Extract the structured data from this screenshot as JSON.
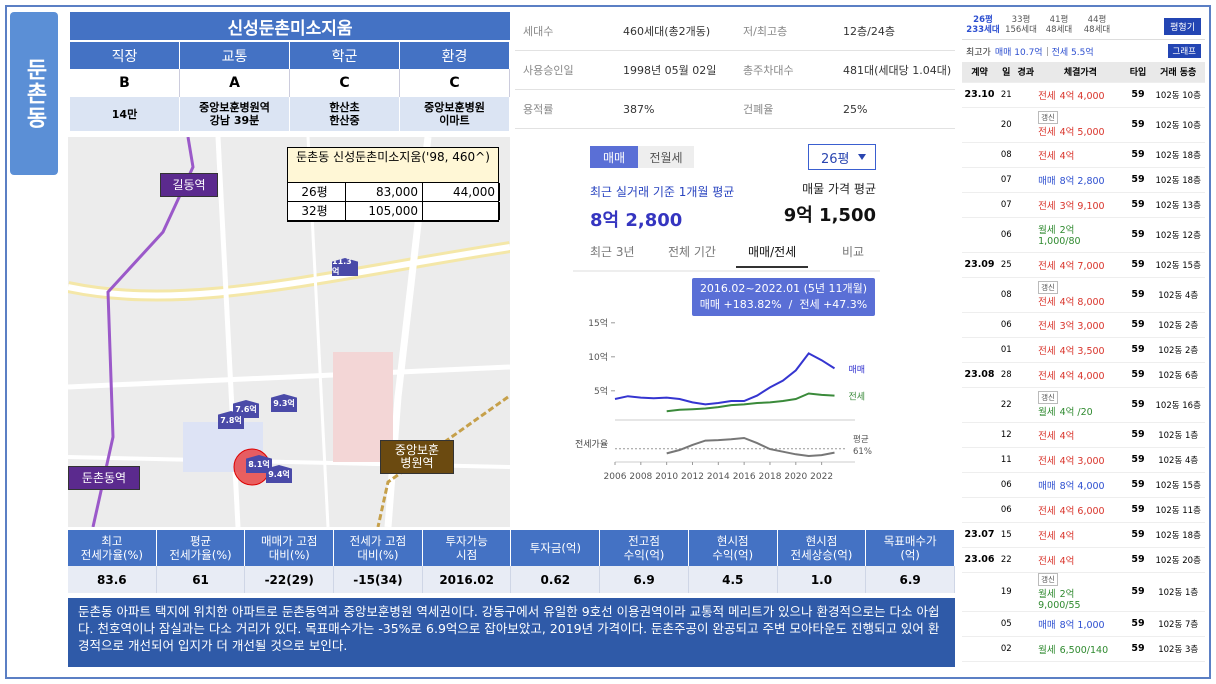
{
  "side_label": "둔촌동",
  "title": "신성둔촌미소지움",
  "scores": {
    "headers": [
      "직장",
      "교통",
      "학군",
      "환경"
    ],
    "grades": [
      "B",
      "A",
      "C",
      "C"
    ],
    "details": [
      "14만",
      "중앙보훈병원역\n강남 39분",
      "한산초\n한산중",
      "중앙보훈병원\n이마트"
    ]
  },
  "info": [
    [
      "세대수",
      "460세대(총2개동)",
      "저/최고층",
      "12층/24층"
    ],
    [
      "사용승인일",
      "1998년 05월 02일",
      "총주차대수",
      "481대(세대당 1.04대)"
    ],
    [
      "용적률",
      "387%",
      "건폐율",
      "25%"
    ]
  ],
  "map": {
    "stations": [
      "길동역",
      "둔촌동역",
      "중앙보훈\n병원역"
    ],
    "markers": [
      "11.3억",
      "7.6억",
      "9.3억",
      "7.8억",
      "8.1억",
      "9.4억"
    ],
    "overlay": {
      "title": "둔촌동 신성둔촌미소지움('98, 460^)",
      "rows": [
        [
          "26평",
          "83,000",
          "44,000"
        ],
        [
          "32평",
          "105,000"
        ]
      ]
    }
  },
  "chart_panel": {
    "tabs": [
      "매매",
      "전월세"
    ],
    "size_select": "26평",
    "recent_label": "최근 실거래 기준 1개월 평균",
    "recent_value": "8억 2,800",
    "listing_label": "매물 가격 평균",
    "listing_value": "9억 1,500",
    "period_tabs": [
      "최근 3년",
      "전체 기간",
      "매매/전세",
      "비교"
    ],
    "tooltip": [
      "2016.02~2022.01 (5년 11개월)",
      "매매 +183.82%  /  전세 +47.3%"
    ]
  },
  "chart_data": [
    {
      "type": "line",
      "x": [
        2006,
        2007,
        2008,
        2009,
        2010,
        2011,
        2012,
        2013,
        2014,
        2015,
        2016,
        2017,
        2018,
        2019,
        2020,
        2021,
        2022,
        2023
      ],
      "series": [
        {
          "name": "매매",
          "color": "#3535d0",
          "values": [
            3.8,
            4.2,
            4.0,
            3.9,
            4.0,
            3.8,
            3.3,
            3.0,
            3.2,
            3.5,
            3.5,
            4.3,
            5.5,
            6.5,
            8.0,
            10.5,
            9.5,
            8.3
          ]
        },
        {
          "name": "전세",
          "color": "#3a8a3a",
          "values": [
            null,
            null,
            null,
            null,
            2.0,
            2.2,
            2.3,
            2.4,
            2.6,
            2.9,
            3.0,
            3.2,
            3.3,
            3.5,
            3.8,
            4.6,
            4.4,
            4.3
          ]
        }
      ],
      "xlim": [
        2006,
        2023.5
      ],
      "xticks": [
        2006,
        2008,
        2010,
        2012,
        2014,
        2016,
        2018,
        2020,
        2022
      ],
      "ylim": [
        1,
        16
      ],
      "yticks": [
        {
          "value": 5,
          "label": "5억"
        },
        {
          "value": 10,
          "label": "10억"
        },
        {
          "value": 15,
          "label": "15억"
        }
      ]
    },
    {
      "type": "line",
      "ylabel": "전세가율",
      "x": [
        2010,
        2011,
        2012,
        2013,
        2014,
        2015,
        2016,
        2017,
        2018,
        2019,
        2020,
        2021,
        2022,
        2023
      ],
      "series": [
        {
          "color": "#777777",
          "values": [
            50,
            58,
            70,
            80,
            81,
            83,
            86,
            74,
            60,
            54,
            48,
            44,
            46,
            52
          ]
        }
      ],
      "xlim": [
        2006,
        2023.5
      ],
      "ylim": [
        30,
        100
      ],
      "annotation": "평균",
      "average": 61,
      "average_label": "61%"
    }
  ],
  "stats": {
    "headers": [
      "최고\n전세가율(%)",
      "평균\n전세가율(%)",
      "매매가 고점\n대비(%)",
      "전세가 고점\n대비(%)",
      "투자가능\n시점",
      "투자금(억)",
      "전고점\n수익(억)",
      "현시점\n수익(억)",
      "현시점\n전세상승(억)",
      "목표매수가\n(억)"
    ],
    "values": [
      "83.6",
      "61",
      "-22(29)",
      "-15(34)",
      "2016.02",
      "0.62",
      "6.9",
      "4.5",
      "1.0",
      "6.9"
    ]
  },
  "description": "둔촌동 아파트 택지에 위치한 아파트로 둔촌동역과 중앙보훈병원 역세권이다. 강동구에서 유일한 9호선 이용권역이라 교통적 메리트가 있으나 환경적으로는 다소 아쉽다. 천호역이나 잠실과는 다소 거리가 있다. 목표매수가는 -35%로 6.9억으로 잡아보았고, 2019년 가격이다. 둔촌주공이 완공되고 주변 모아타운도 진행되고 있어 환경적으로 개선되어 입지가 더 개선될 것으로 보인다.",
  "deals": {
    "size_tabs": [
      {
        "size": "26평",
        "units": "233세대"
      },
      {
        "size": "33평",
        "units": "156세대"
      },
      {
        "size": "41평",
        "units": "48세대"
      },
      {
        "size": "44평",
        "units": "48세대"
      }
    ],
    "plan_button": "평형기",
    "top_price": {
      "label": "최고가",
      "sale": "매매 10.7억",
      "jeonse": "전세 5.5억"
    },
    "graph_button": "그래프",
    "columns": [
      "계약",
      "일",
      "경과",
      "체결가격",
      "타입",
      "거래 동층"
    ],
    "kind_colors": {
      "전세": "#d9342b",
      "매매": "#2d4fd0",
      "월세": "#2f8a2f"
    },
    "rows": [
      {
        "month": "23.10",
        "day": "21",
        "kind": "전세",
        "price": "4억 4,000",
        "type": "59",
        "unit": "102동 10층"
      },
      {
        "day": "20",
        "tag": "갱신",
        "kind": "전세",
        "price": "4억 5,000",
        "type": "59",
        "unit": "102동 10층"
      },
      {
        "day": "08",
        "kind": "전세",
        "price": "4억",
        "type": "59",
        "unit": "102동 18층"
      },
      {
        "day": "07",
        "kind": "매매",
        "price": "8억 2,800",
        "type": "59",
        "unit": "102동 18층"
      },
      {
        "day": "07",
        "kind": "전세",
        "price": "3억 9,100",
        "type": "59",
        "unit": "102동 13층"
      },
      {
        "day": "06",
        "kind": "월세",
        "price": "2억",
        "sub": "1,000/80",
        "type": "59",
        "unit": "102동 12층"
      },
      {
        "month": "23.09",
        "day": "25",
        "kind": "전세",
        "price": "4억 7,000",
        "type": "59",
        "unit": "102동 15층"
      },
      {
        "day": "08",
        "tag": "갱신",
        "kind": "전세",
        "price": "4억 8,000",
        "type": "59",
        "unit": "102동 4층"
      },
      {
        "day": "06",
        "kind": "전세",
        "price": "3억 3,000",
        "type": "59",
        "unit": "102동 2층"
      },
      {
        "day": "01",
        "kind": "전세",
        "price": "4억 3,500",
        "type": "59",
        "unit": "102동 2층"
      },
      {
        "month": "23.08",
        "day": "28",
        "kind": "전세",
        "price": "4억 4,000",
        "type": "59",
        "unit": "102동 6층"
      },
      {
        "day": "22",
        "tag": "갱신",
        "kind": "월세",
        "price": "4억 /20",
        "type": "59",
        "unit": "102동 16층"
      },
      {
        "day": "12",
        "kind": "전세",
        "price": "4억",
        "type": "59",
        "unit": "102동 1층"
      },
      {
        "day": "11",
        "kind": "전세",
        "price": "4억 3,000",
        "type": "59",
        "unit": "102동 4층"
      },
      {
        "day": "06",
        "kind": "매매",
        "price": "8억 4,000",
        "type": "59",
        "unit": "102동 15층"
      },
      {
        "day": "06",
        "kind": "전세",
        "price": "4억 6,000",
        "type": "59",
        "unit": "102동 11층"
      },
      {
        "month": "23.07",
        "day": "15",
        "kind": "전세",
        "price": "4억",
        "type": "59",
        "unit": "102동 18층"
      },
      {
        "month": "23.06",
        "day": "22",
        "kind": "전세",
        "price": "4억",
        "type": "59",
        "unit": "102동 20층"
      },
      {
        "day": "19",
        "tag": "갱신",
        "kind": "월세",
        "price": "2억",
        "sub": "9,000/55",
        "type": "59",
        "unit": "102동 1층"
      },
      {
        "day": "05",
        "kind": "매매",
        "price": "8억 1,000",
        "type": "59",
        "unit": "102동 7층"
      },
      {
        "day": "02",
        "kind": "월세",
        "price": "6,500/140",
        "type": "59",
        "unit": "102동 3층"
      }
    ]
  }
}
